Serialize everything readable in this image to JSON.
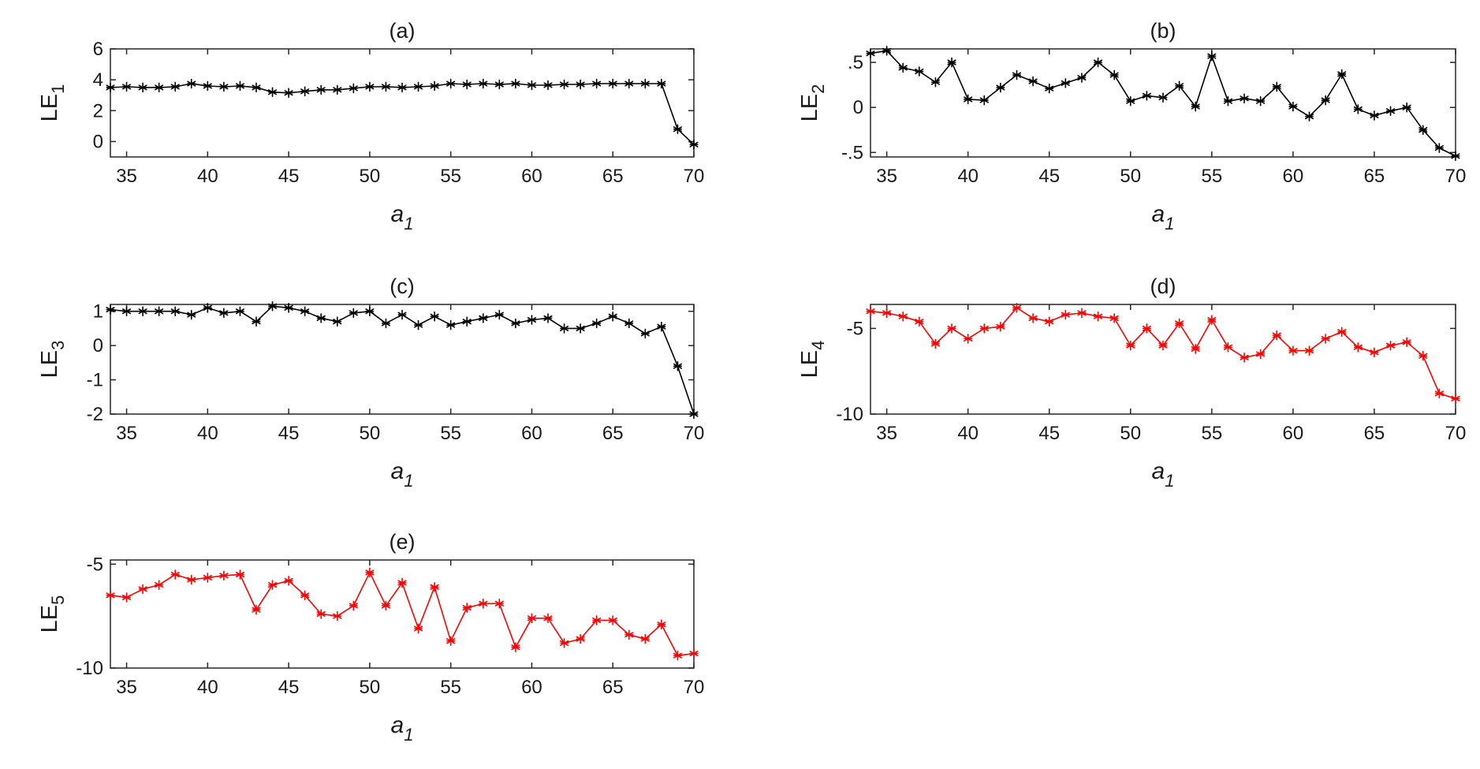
{
  "figure": {
    "background": "#ffffff"
  },
  "chart_data": [
    {
      "type": "line",
      "title": "(a)",
      "xlabel": "a",
      "xlabel_sub": "1",
      "ylabel": "LE",
      "ylabel_sub": "1",
      "xlim": [
        34,
        70
      ],
      "ylim": [
        -1,
        6
      ],
      "xticks": [
        35,
        40,
        45,
        50,
        55,
        60,
        65,
        70
      ],
      "yticks": [
        0,
        2,
        4,
        6
      ],
      "color": "#000000",
      "marker": "asterisk",
      "x": [
        34,
        35,
        36,
        37,
        38,
        39,
        40,
        41,
        42,
        43,
        44,
        45,
        46,
        47,
        48,
        49,
        50,
        51,
        52,
        53,
        54,
        55,
        56,
        57,
        58,
        59,
        60,
        61,
        62,
        63,
        64,
        65,
        66,
        67,
        68,
        69,
        70
      ],
      "values": [
        3.5,
        3.55,
        3.5,
        3.5,
        3.55,
        3.75,
        3.6,
        3.55,
        3.6,
        3.5,
        3.2,
        3.15,
        3.25,
        3.35,
        3.35,
        3.45,
        3.55,
        3.55,
        3.5,
        3.55,
        3.6,
        3.75,
        3.7,
        3.75,
        3.7,
        3.75,
        3.65,
        3.65,
        3.7,
        3.7,
        3.75,
        3.75,
        3.75,
        3.75,
        3.75,
        0.8,
        -0.2
      ]
    },
    {
      "type": "line",
      "title": "(b)",
      "xlabel": "a",
      "xlabel_sub": "1",
      "ylabel": "LE",
      "ylabel_sub": "2",
      "xlim": [
        34,
        70
      ],
      "ylim": [
        -0.55,
        0.65
      ],
      "xticks": [
        35,
        40,
        45,
        50,
        55,
        60,
        65,
        70
      ],
      "yticks": [
        -0.5,
        0,
        0.5
      ],
      "color": "#000000",
      "marker": "asterisk",
      "x": [
        34,
        35,
        36,
        37,
        38,
        39,
        40,
        41,
        42,
        43,
        44,
        45,
        46,
        47,
        48,
        49,
        50,
        51,
        52,
        53,
        54,
        55,
        56,
        57,
        58,
        59,
        60,
        61,
        62,
        63,
        64,
        65,
        66,
        67,
        68,
        69,
        70
      ],
      "values": [
        0.6,
        0.63,
        0.44,
        0.4,
        0.28,
        0.5,
        0.09,
        0.08,
        0.22,
        0.36,
        0.29,
        0.21,
        0.27,
        0.33,
        0.5,
        0.36,
        0.07,
        0.13,
        0.11,
        0.24,
        0.01,
        0.57,
        0.07,
        0.1,
        0.07,
        0.23,
        0.01,
        -0.1,
        0.08,
        0.37,
        -0.02,
        -0.09,
        -0.04,
        0.0,
        -0.25,
        -0.45,
        -0.54
      ]
    },
    {
      "type": "line",
      "title": "(c)",
      "xlabel": "a",
      "xlabel_sub": "1",
      "ylabel": "LE",
      "ylabel_sub": "3",
      "xlim": [
        34,
        70
      ],
      "ylim": [
        -2,
        1.2
      ],
      "xticks": [
        35,
        40,
        45,
        50,
        55,
        60,
        65,
        70
      ],
      "yticks": [
        -2,
        -1,
        0,
        1
      ],
      "color": "#000000",
      "marker": "asterisk",
      "x": [
        34,
        35,
        36,
        37,
        38,
        39,
        40,
        41,
        42,
        43,
        44,
        45,
        46,
        47,
        48,
        49,
        50,
        51,
        52,
        53,
        54,
        55,
        56,
        57,
        58,
        59,
        60,
        61,
        62,
        63,
        64,
        65,
        66,
        67,
        68,
        69,
        70
      ],
      "values": [
        1.05,
        1.0,
        1.0,
        1.0,
        1.0,
        0.9,
        1.1,
        0.95,
        1.0,
        0.7,
        1.15,
        1.1,
        1.0,
        0.8,
        0.7,
        0.95,
        1.0,
        0.65,
        0.9,
        0.6,
        0.85,
        0.6,
        0.7,
        0.8,
        0.9,
        0.65,
        0.75,
        0.8,
        0.5,
        0.5,
        0.65,
        0.85,
        0.65,
        0.35,
        0.55,
        -0.6,
        -2.0
      ]
    },
    {
      "type": "line",
      "title": "(d)",
      "xlabel": "a",
      "xlabel_sub": "1",
      "ylabel": "LE",
      "ylabel_sub": "4",
      "xlim": [
        34,
        70
      ],
      "ylim": [
        -10,
        -3.6
      ],
      "xticks": [
        35,
        40,
        45,
        50,
        55,
        60,
        65,
        70
      ],
      "yticks": [
        -10,
        -5
      ],
      "color": "#ff0000",
      "marker": "asterisk",
      "x": [
        34,
        35,
        36,
        37,
        38,
        39,
        40,
        41,
        42,
        43,
        44,
        45,
        46,
        47,
        48,
        49,
        50,
        51,
        52,
        53,
        54,
        55,
        56,
        57,
        58,
        59,
        60,
        61,
        62,
        63,
        64,
        65,
        66,
        67,
        68,
        69,
        70
      ],
      "values": [
        -4.0,
        -4.1,
        -4.3,
        -4.6,
        -5.9,
        -5.0,
        -5.6,
        -5.0,
        -4.9,
        -3.8,
        -4.4,
        -4.6,
        -4.2,
        -4.1,
        -4.3,
        -4.4,
        -6.0,
        -5.0,
        -6.0,
        -4.7,
        -6.2,
        -4.5,
        -6.1,
        -6.7,
        -6.5,
        -5.4,
        -6.3,
        -6.3,
        -5.6,
        -5.2,
        -6.1,
        -6.4,
        -6.0,
        -5.8,
        -6.6,
        -8.8,
        -9.1
      ]
    },
    {
      "type": "line",
      "title": "(e)",
      "xlabel": "a",
      "xlabel_sub": "1",
      "ylabel": "LE",
      "ylabel_sub": "5",
      "xlim": [
        34,
        70
      ],
      "ylim": [
        -10,
        -4.8
      ],
      "xticks": [
        35,
        40,
        45,
        50,
        55,
        60,
        65,
        70
      ],
      "yticks": [
        -10,
        -5
      ],
      "color": "#ff0000",
      "marker": "asterisk",
      "x": [
        34,
        35,
        36,
        37,
        38,
        39,
        40,
        41,
        42,
        43,
        44,
        45,
        46,
        47,
        48,
        49,
        50,
        51,
        52,
        53,
        54,
        55,
        56,
        57,
        58,
        59,
        60,
        61,
        62,
        63,
        64,
        65,
        66,
        67,
        68,
        69,
        70
      ],
      "values": [
        -6.5,
        -6.6,
        -6.2,
        -6.0,
        -5.5,
        -5.75,
        -5.65,
        -5.55,
        -5.5,
        -7.2,
        -6.0,
        -5.8,
        -6.5,
        -7.4,
        -7.5,
        -7.0,
        -5.4,
        -7.0,
        -5.9,
        -8.1,
        -6.1,
        -8.7,
        -7.1,
        -6.9,
        -6.9,
        -9.0,
        -7.6,
        -7.6,
        -8.8,
        -8.6,
        -7.7,
        -7.7,
        -8.4,
        -8.6,
        -7.9,
        -9.4,
        -9.3
      ]
    }
  ]
}
